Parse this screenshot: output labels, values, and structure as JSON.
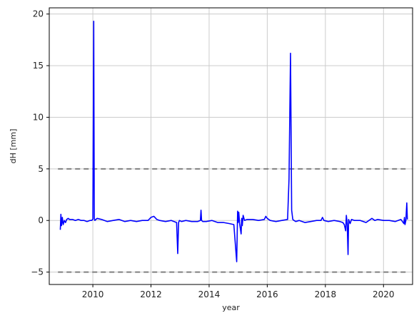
{
  "chart_data": {
    "type": "line",
    "title": "",
    "xlabel": "year",
    "ylabel": "dH [mm]",
    "xlim": [
      2008.5,
      2021.0
    ],
    "ylim": [
      -6.2,
      20.6
    ],
    "grid": true,
    "x_ticks": [
      2010,
      2012,
      2014,
      2016,
      2018,
      2020
    ],
    "y_ticks": [
      -5,
      0,
      5,
      10,
      15,
      20
    ],
    "colors": {
      "line": "#0000ff",
      "threshold": "#808080",
      "grid": "#cccccc",
      "axes": "#000000"
    },
    "thresholds": [
      {
        "y": 5,
        "style": "dashed"
      },
      {
        "y": -5,
        "style": "dashed"
      }
    ],
    "series": [
      {
        "x": [
          2008.88,
          2008.9,
          2008.92,
          2008.95,
          2008.98,
          2009.02,
          2009.06,
          2009.1,
          2009.15,
          2009.2,
          2009.3,
          2009.4,
          2009.5,
          2009.6,
          2009.7,
          2009.8,
          2009.9,
          2009.95,
          2010.0,
          2010.03,
          2010.05,
          2010.07,
          2010.1,
          2010.15,
          2010.3,
          2010.5,
          2010.7,
          2010.9,
          2011.1,
          2011.3,
          2011.5,
          2011.7,
          2011.9,
          2012.0,
          2012.1,
          2012.2,
          2012.3,
          2012.5,
          2012.7,
          2012.88,
          2012.92,
          2012.95,
          2012.98,
          2013.05,
          2013.2,
          2013.4,
          2013.6,
          2013.7,
          2013.72,
          2013.74,
          2013.78,
          2013.9,
          2014.1,
          2014.3,
          2014.5,
          2014.7,
          2014.85,
          2014.95,
          2014.98,
          2015.0,
          2015.02,
          2015.05,
          2015.1,
          2015.12,
          2015.14,
          2015.17,
          2015.22,
          2015.3,
          2015.5,
          2015.7,
          2015.9,
          2015.95,
          2016.0,
          2016.1,
          2016.3,
          2016.5,
          2016.7,
          2016.75,
          2016.8,
          2016.84,
          2016.88,
          2016.92,
          2016.98,
          2017.1,
          2017.3,
          2017.5,
          2017.7,
          2017.85,
          2017.9,
          2017.95,
          2018.1,
          2018.3,
          2018.5,
          2018.6,
          2018.65,
          2018.7,
          2018.72,
          2018.75,
          2018.78,
          2018.8,
          2018.85,
          2018.9,
          2019.0,
          2019.2,
          2019.4,
          2019.6,
          2019.7,
          2019.8,
          2020.0,
          2020.2,
          2020.4,
          2020.6,
          2020.7,
          2020.72,
          2020.74,
          2020.77,
          2020.8,
          2020.82
        ],
        "y": [
          -0.9,
          0.6,
          -0.5,
          0.3,
          -0.4,
          0.0,
          -0.2,
          0.1,
          0.2,
          0.1,
          0.1,
          0.0,
          0.1,
          0.0,
          0.0,
          -0.1,
          0.0,
          0.0,
          0.1,
          19.3,
          0.2,
          0.0,
          0.1,
          0.2,
          0.1,
          -0.1,
          0.0,
          0.1,
          -0.1,
          0.0,
          -0.1,
          0.0,
          0.0,
          0.3,
          0.4,
          0.1,
          0.0,
          -0.1,
          0.0,
          -0.2,
          -3.2,
          -0.2,
          0.0,
          -0.1,
          0.0,
          -0.1,
          -0.1,
          0.0,
          1.0,
          0.0,
          -0.1,
          -0.1,
          0.0,
          -0.2,
          -0.2,
          -0.3,
          -0.4,
          -4.0,
          0.9,
          -0.2,
          0.8,
          -0.3,
          -1.3,
          0.2,
          -0.5,
          0.5,
          0.0,
          0.1,
          0.1,
          0.0,
          0.1,
          0.4,
          0.2,
          0.0,
          -0.1,
          0.0,
          0.1,
          4.0,
          16.2,
          1.0,
          0.1,
          0.0,
          -0.1,
          0.0,
          -0.2,
          -0.1,
          0.0,
          0.0,
          0.3,
          0.0,
          -0.1,
          0.0,
          -0.1,
          -0.2,
          -0.4,
          -1.0,
          0.5,
          -0.3,
          -3.3,
          0.1,
          -0.3,
          0.1,
          0.0,
          0.0,
          -0.2,
          0.2,
          0.0,
          0.1,
          0.0,
          0.0,
          -0.1,
          0.1,
          -0.3,
          0.3,
          -0.4,
          0.0,
          1.7,
          0.1
        ]
      }
    ]
  }
}
